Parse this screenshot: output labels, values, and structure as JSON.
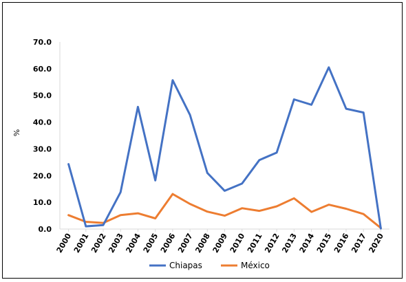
{
  "chart_data": {
    "type": "line",
    "ylabel": "%",
    "ylim": [
      0,
      70
    ],
    "yticks": [
      "0.0",
      "10.0",
      "20.0",
      "30.0",
      "40.0",
      "50.0",
      "60.0",
      "70.0"
    ],
    "categories": [
      "2000",
      "2001",
      "2002",
      "2003",
      "2004",
      "2005",
      "2006",
      "2007",
      "2008",
      "2009",
      "2010",
      "2011",
      "2012",
      "2013",
      "2014",
      "2015",
      "2016",
      "2017",
      "2020"
    ],
    "series": [
      {
        "name": "Chiapas",
        "color": "#4472C4",
        "values": [
          24.3,
          1.0,
          1.5,
          13.8,
          45.7,
          18.2,
          55.7,
          42.7,
          21.0,
          14.3,
          17.0,
          25.8,
          28.6,
          48.5,
          46.5,
          60.5,
          45.0,
          43.6,
          0.2
        ]
      },
      {
        "name": "México",
        "color": "#ED7D31",
        "values": [
          5.2,
          2.7,
          2.3,
          5.2,
          5.9,
          4.0,
          13.1,
          9.4,
          6.5,
          5.0,
          7.8,
          6.8,
          8.5,
          11.5,
          6.4,
          9.1,
          7.6,
          5.6,
          0.4
        ]
      }
    ],
    "grid": false,
    "legend": "bottom"
  }
}
